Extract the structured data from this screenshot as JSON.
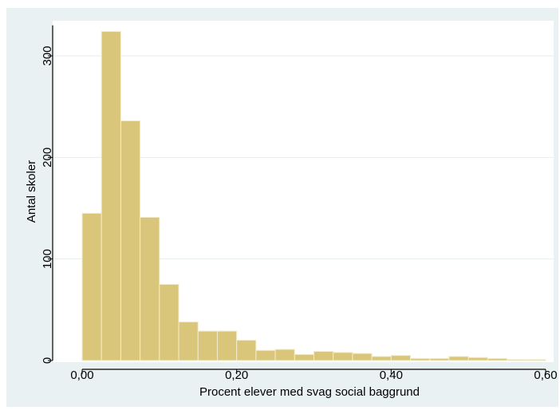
{
  "chart_data": {
    "type": "bar",
    "title": "",
    "xlabel": "Procent elever med svag social baggrund",
    "ylabel": "Antal skoler",
    "xlim": [
      0.0,
      0.6
    ],
    "ylim": [
      0,
      330
    ],
    "xticks": [
      0.0,
      0.2,
      0.4,
      0.6
    ],
    "xtick_labels": [
      "0,00",
      "0,20",
      "0,40",
      "0,60"
    ],
    "yticks": [
      0,
      100,
      200,
      300
    ],
    "ytick_labels": [
      "0",
      "100",
      "200",
      "300"
    ],
    "grid": "horizontal",
    "legend": "none",
    "bin_width": 0.025,
    "bins": [
      {
        "start": 0.0,
        "count": 145
      },
      {
        "start": 0.025,
        "count": 324
      },
      {
        "start": 0.05,
        "count": 236
      },
      {
        "start": 0.075,
        "count": 141
      },
      {
        "start": 0.1,
        "count": 75
      },
      {
        "start": 0.125,
        "count": 38
      },
      {
        "start": 0.15,
        "count": 29
      },
      {
        "start": 0.175,
        "count": 29
      },
      {
        "start": 0.2,
        "count": 20
      },
      {
        "start": 0.225,
        "count": 10
      },
      {
        "start": 0.25,
        "count": 11
      },
      {
        "start": 0.275,
        "count": 6
      },
      {
        "start": 0.3,
        "count": 9
      },
      {
        "start": 0.325,
        "count": 8
      },
      {
        "start": 0.35,
        "count": 7
      },
      {
        "start": 0.375,
        "count": 4
      },
      {
        "start": 0.4,
        "count": 5
      },
      {
        "start": 0.425,
        "count": 2
      },
      {
        "start": 0.45,
        "count": 2
      },
      {
        "start": 0.475,
        "count": 4
      },
      {
        "start": 0.5,
        "count": 3
      },
      {
        "start": 0.525,
        "count": 2
      },
      {
        "start": 0.55,
        "count": 1
      },
      {
        "start": 0.575,
        "count": 1
      }
    ]
  },
  "colors": {
    "outer_background": "#eaf1f3",
    "plot_background": "#ffffff",
    "bar_fill": "#d9c67b",
    "bar_stroke": "#f4ecc9",
    "grid": "#e6eef0",
    "axis": "#000000"
  }
}
